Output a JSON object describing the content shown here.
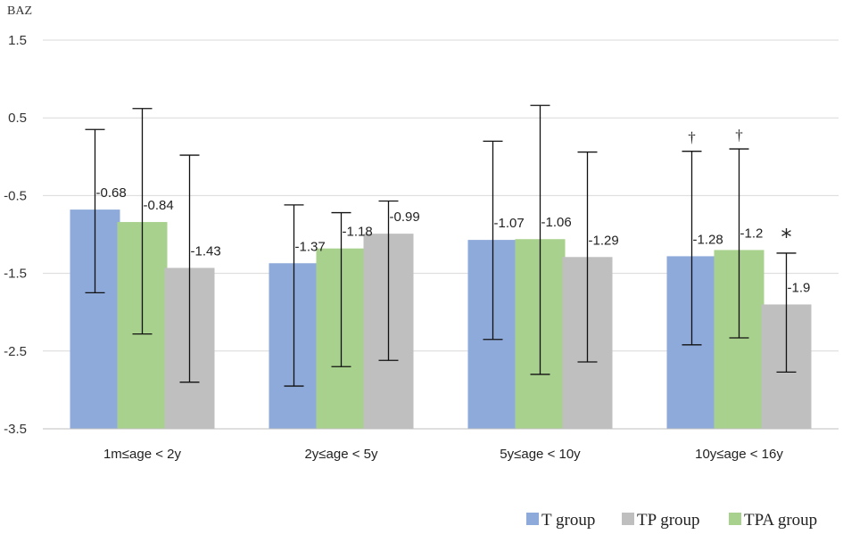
{
  "chart_data": {
    "type": "bar",
    "title": "",
    "ylabel": "BAZ",
    "xlabel": "",
    "ylim": [
      -3.5,
      1.5
    ],
    "yticks": [
      "1.5",
      "0.5",
      "-0.5",
      "-1.5",
      "-2.5",
      "-3.5"
    ],
    "ytick_values": [
      1.5,
      0.5,
      -0.5,
      -1.5,
      -2.5,
      -3.5
    ],
    "grid": true,
    "categories": [
      "1m≤age < 2y",
      "2y≤age < 5y",
      "5y≤age < 10y",
      "10y≤age < 16y"
    ],
    "series": [
      {
        "name": "T group",
        "color": "#8eaadb",
        "values": [
          -0.68,
          -1.37,
          -1.07,
          -1.28
        ],
        "labels": [
          "-0.68",
          "-1.37",
          "-1.07",
          "-1.28"
        ],
        "err_low": [
          -1.75,
          -2.95,
          -2.35,
          -2.42
        ],
        "err_high": [
          0.35,
          -0.62,
          0.2,
          0.07
        ],
        "markers": [
          "",
          "",
          "",
          "†"
        ]
      },
      {
        "name": "TPA group",
        "color": "#a9d18e",
        "values": [
          -0.84,
          -1.18,
          -1.06,
          -1.2
        ],
        "labels": [
          "-0.84",
          "-1.18",
          "-1.06",
          "-1.2"
        ],
        "err_low": [
          -2.28,
          -2.7,
          -2.8,
          -2.33
        ],
        "err_high": [
          0.62,
          -0.72,
          0.66,
          0.1
        ],
        "markers": [
          "",
          "",
          "",
          "†"
        ]
      },
      {
        "name": "TP group",
        "color": "#bfbfbf",
        "values": [
          -1.43,
          -0.99,
          -1.29,
          -1.9
        ],
        "labels": [
          "-1.43",
          "-0.99",
          "-1.29",
          "-1.9"
        ],
        "err_low": [
          -2.9,
          -2.62,
          -2.64,
          -2.77
        ],
        "err_high": [
          0.02,
          -0.57,
          0.06,
          -1.24
        ],
        "markers": [
          "",
          "",
          "",
          "*"
        ]
      }
    ],
    "legend": {
      "position": "bottom-right",
      "entries": [
        {
          "name": "T group",
          "color": "#8eaadb"
        },
        {
          "name": "TP group",
          "color": "#bfbfbf"
        },
        {
          "name": "TPA group",
          "color": "#a9d18e"
        }
      ]
    }
  }
}
